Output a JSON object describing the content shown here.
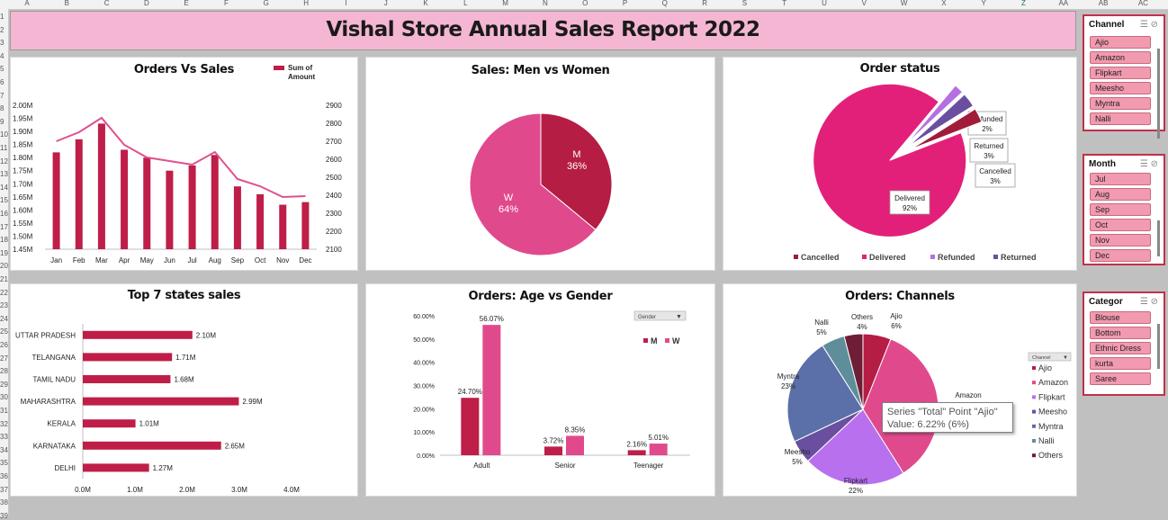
{
  "report_title": "Vishal Store Annual Sales Report 2022",
  "column_headers": [
    "A",
    "B",
    "C",
    "D",
    "E",
    "F",
    "G",
    "H",
    "I",
    "J",
    "K",
    "L",
    "M",
    "N",
    "O",
    "P",
    "Q",
    "R",
    "S",
    "T",
    "U",
    "V",
    "W",
    "X",
    "Y",
    "Z",
    "AA",
    "AB",
    "AC"
  ],
  "row_headers": [
    "1",
    "2",
    "3",
    "4",
    "5",
    "6",
    "7",
    "8",
    "9",
    "10",
    "11",
    "12",
    "13",
    "14",
    "15",
    "16",
    "17",
    "18",
    "19",
    "20",
    "21",
    "22",
    "23",
    "24",
    "25",
    "26",
    "27",
    "28",
    "29",
    "30",
    "31",
    "32",
    "33",
    "34",
    "35",
    "36",
    "37",
    "38",
    "39"
  ],
  "chart_data": [
    {
      "type": "bar",
      "title": "Orders Vs Sales",
      "categories": [
        "Jan",
        "Feb",
        "Mar",
        "Apr",
        "May",
        "Jun",
        "Jul",
        "Aug",
        "Sep",
        "Oct",
        "Nov",
        "Dec"
      ],
      "series": [
        {
          "name": "Sum of Amount",
          "type": "bar",
          "axis": "left",
          "values": [
            1.82,
            1.87,
            1.93,
            1.83,
            1.8,
            1.75,
            1.77,
            1.81,
            1.69,
            1.66,
            1.62,
            1.63
          ],
          "color": "#be1e48"
        },
        {
          "name": "",
          "type": "line",
          "axis": "right",
          "values": [
            2700,
            2750,
            2830,
            2680,
            2610,
            2590,
            2570,
            2640,
            2490,
            2450,
            2390,
            2395
          ],
          "color": "#e0508e"
        }
      ],
      "y_left": {
        "ticks": [
          "1.45M",
          "1.50M",
          "1.55M",
          "1.60M",
          "1.65M",
          "1.70M",
          "1.75M",
          "1.80M",
          "1.85M",
          "1.90M",
          "1.95M",
          "2.00M"
        ],
        "lim": [
          1.45,
          2.0
        ]
      },
      "y_right": {
        "ticks": [
          "2100",
          "2200",
          "2300",
          "2400",
          "2500",
          "2600",
          "2700",
          "2800",
          "2900"
        ],
        "lim": [
          2100,
          2900
        ]
      },
      "legend_label": [
        "Sum of",
        "Amount"
      ],
      "legend_position": "top-right"
    },
    {
      "type": "pie",
      "title": "Sales: Men vs Women",
      "slices": [
        {
          "label": "M",
          "value": 36,
          "pct_text": "36%",
          "color": "#b51d44"
        },
        {
          "label": "W",
          "value": 64,
          "pct_text": "64%",
          "color": "#e04a8c"
        }
      ]
    },
    {
      "type": "pie",
      "title": "Order status",
      "slices": [
        {
          "label": "Refunded",
          "value": 2,
          "pct_text": "2%",
          "color": "#b56fe0"
        },
        {
          "label": "Returned",
          "value": 3,
          "pct_text": "3%",
          "color": "#6a4fa0"
        },
        {
          "label": "Cancelled",
          "value": 3,
          "pct_text": "3%",
          "color": "#a01c38"
        },
        {
          "label": "Delivered",
          "value": 92,
          "pct_text": "92%",
          "color": "#e2207a"
        }
      ],
      "legend": [
        {
          "label": "Cancelled",
          "color": "#a01c38"
        },
        {
          "label": "Delivered",
          "color": "#e2207a"
        },
        {
          "label": "Refunded",
          "color": "#b56fe0"
        },
        {
          "label": "Returned",
          "color": "#6a4fa0"
        }
      ],
      "legend_position": "bottom"
    },
    {
      "type": "bar",
      "orientation": "horizontal",
      "title": "Top 7 states sales",
      "categories": [
        "UTTAR PRADESH",
        "TELANGANA",
        "TAMIL NADU",
        "MAHARASHTRA",
        "KERALA",
        "KARNATAKA",
        "DELHI"
      ],
      "values": [
        2.1,
        1.71,
        1.68,
        2.99,
        1.01,
        2.65,
        1.27
      ],
      "value_labels": [
        "2.10M",
        "1.71M",
        "1.68M",
        "2.99M",
        "1.01M",
        "2.65M",
        "1.27M"
      ],
      "x_ticks": [
        "0.0M",
        "1.0M",
        "2.0M",
        "3.0M",
        "4.0M"
      ],
      "xlim": [
        0,
        4
      ],
      "color": "#be1e48"
    },
    {
      "type": "bar",
      "title": "Orders: Age vs Gender",
      "categories": [
        "Adult",
        "Senior",
        "Teenager"
      ],
      "series": [
        {
          "name": "M",
          "values": [
            24.7,
            3.72,
            2.16
          ],
          "labels": [
            "24.70%",
            "3.72%",
            "2.16%"
          ],
          "color": "#be1e48"
        },
        {
          "name": "W",
          "values": [
            56.07,
            8.35,
            5.01
          ],
          "labels": [
            "56.07%",
            "8.35%",
            "5.01%"
          ],
          "color": "#e04a8c"
        }
      ],
      "y_ticks": [
        "0.00%",
        "10.00%",
        "20.00%",
        "30.00%",
        "40.00%",
        "50.00%",
        "60.00%"
      ],
      "ylim": [
        0,
        60
      ],
      "filter_label": "Gender",
      "legend_position": "top-right"
    },
    {
      "type": "pie",
      "title": "Orders: Channels",
      "slices": [
        {
          "label": "Ajio",
          "value": 6,
          "pct_text": "6%",
          "color": "#b51d44"
        },
        {
          "label": "Amazon",
          "value": 35,
          "pct_text": "35%",
          "color": "#e04a8c"
        },
        {
          "label": "Flipkart",
          "value": 22,
          "pct_text": "22%",
          "color": "#b870ee"
        },
        {
          "label": "Meesho",
          "value": 5,
          "pct_text": "5%",
          "color": "#6a4fa0"
        },
        {
          "label": "Myntra",
          "value": 23,
          "pct_text": "23%",
          "color": "#5b6fa8"
        },
        {
          "label": "Nalli",
          "value": 5,
          "pct_text": "5%",
          "color": "#5e8e99"
        },
        {
          "label": "Others",
          "value": 4,
          "pct_text": "4%",
          "color": "#6e1e36"
        }
      ],
      "legend": [
        {
          "label": "Ajio",
          "color": "#b51d44"
        },
        {
          "label": "Amazon",
          "color": "#e04a8c"
        },
        {
          "label": "Flipkart",
          "color": "#b870ee"
        },
        {
          "label": "Meesho",
          "color": "#6a4fa0"
        },
        {
          "label": "Myntra",
          "color": "#5b6fa8"
        },
        {
          "label": "Nalli",
          "color": "#5e8e99"
        },
        {
          "label": "Others",
          "color": "#6e1e36"
        }
      ],
      "filter_label": "Channel",
      "legend_position": "right"
    }
  ],
  "tooltip": {
    "line1": "Series \"Total\" Point \"Ajio\"",
    "line2": "Value: 6.22% (6%)"
  },
  "slicers": {
    "channel": {
      "title": "Channel",
      "items": [
        "Ajio",
        "Amazon",
        "Flipkart",
        "Meesho",
        "Myntra",
        "Nalli"
      ]
    },
    "month": {
      "title": "Month",
      "items": [
        "Jul",
        "Aug",
        "Sep",
        "Oct",
        "Nov",
        "Dec"
      ]
    },
    "category": {
      "title": "Categor",
      "items": [
        "Blouse",
        "Bottom",
        "Ethnic Dress",
        "kurta",
        "Saree"
      ]
    }
  }
}
